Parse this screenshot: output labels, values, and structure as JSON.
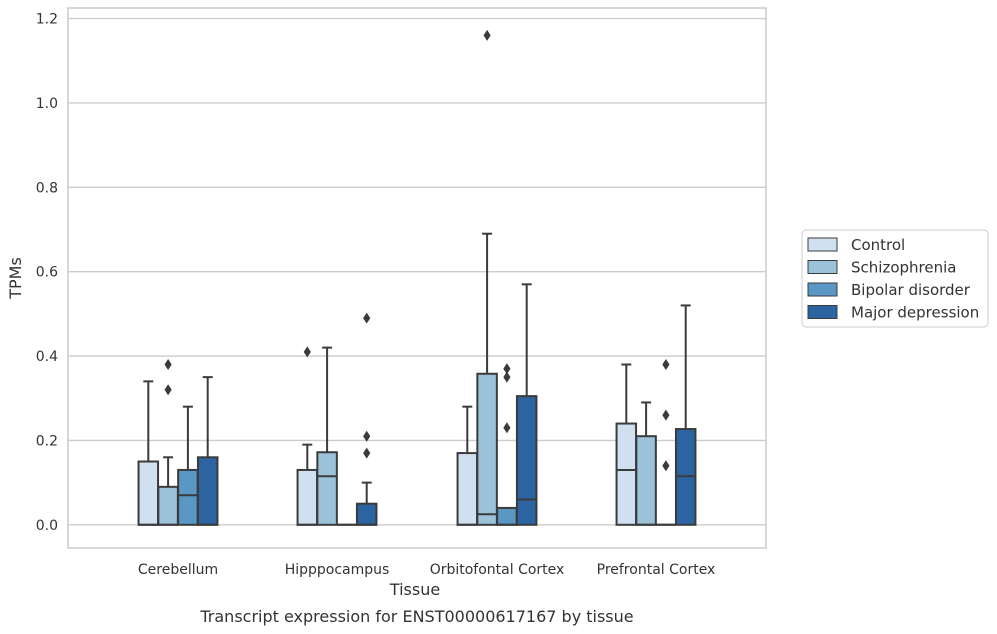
{
  "chart_data": {
    "type": "box",
    "caption": "Transcript expression for ENST00000617167 by tissue",
    "xlabel": "Tissue",
    "ylabel": "TPMs",
    "ylim": [
      -0.055,
      1.225
    ],
    "yticks": [
      0.0,
      0.2,
      0.4,
      0.6,
      0.8,
      1.0,
      1.2
    ],
    "ytick_labels": [
      "0.0",
      "0.2",
      "0.4",
      "0.6",
      "0.8",
      "1.0",
      "1.2"
    ],
    "grid": "horizontal",
    "legend_position": "right",
    "categories": [
      "Cerebellum",
      "Hipppocampus",
      "Orbitofontal Cortex",
      "Prefrontal Cortex"
    ],
    "series": [
      {
        "name": "Control",
        "color": "#d1e0f0",
        "boxes": [
          {
            "q1": 0.0,
            "median": 0.0,
            "q3": 0.15,
            "whisker_low": 0.0,
            "whisker_high": 0.34,
            "outliers": []
          },
          {
            "q1": 0.0,
            "median": 0.0,
            "q3": 0.13,
            "whisker_low": 0.0,
            "whisker_high": 0.19,
            "outliers": [
              0.41
            ]
          },
          {
            "q1": 0.0,
            "median": 0.0,
            "q3": 0.17,
            "whisker_low": 0.0,
            "whisker_high": 0.28,
            "outliers": []
          },
          {
            "q1": 0.0,
            "median": 0.13,
            "q3": 0.24,
            "whisker_low": 0.0,
            "whisker_high": 0.38,
            "outliers": []
          }
        ]
      },
      {
        "name": "Schizophrenia",
        "color": "#9cc2da",
        "boxes": [
          {
            "q1": 0.0,
            "median": 0.0,
            "q3": 0.09,
            "whisker_low": 0.0,
            "whisker_high": 0.16,
            "outliers": [
              0.32,
              0.38
            ]
          },
          {
            "q1": 0.0,
            "median": 0.115,
            "q3": 0.172,
            "whisker_low": 0.0,
            "whisker_high": 0.42,
            "outliers": []
          },
          {
            "q1": 0.0,
            "median": 0.025,
            "q3": 0.358,
            "whisker_low": 0.0,
            "whisker_high": 0.69,
            "outliers": [
              1.16
            ]
          },
          {
            "q1": 0.0,
            "median": 0.0,
            "q3": 0.21,
            "whisker_low": 0.0,
            "whisker_high": 0.29,
            "outliers": []
          }
        ]
      },
      {
        "name": "Bipolar disorder",
        "color": "#5b97c4",
        "boxes": [
          {
            "q1": 0.0,
            "median": 0.07,
            "q3": 0.13,
            "whisker_low": 0.0,
            "whisker_high": 0.28,
            "outliers": []
          },
          {
            "q1": 0.0,
            "median": 0.0,
            "q3": 0.0,
            "whisker_low": 0.0,
            "whisker_high": 0.0,
            "outliers": []
          },
          {
            "q1": 0.0,
            "median": 0.0,
            "q3": 0.04,
            "whisker_low": 0.0,
            "whisker_high": 0.04,
            "outliers": [
              0.23,
              0.35,
              0.37
            ]
          },
          {
            "q1": 0.0,
            "median": 0.0,
            "q3": 0.0,
            "whisker_low": 0.0,
            "whisker_high": 0.0,
            "outliers": [
              0.14,
              0.26,
              0.38
            ]
          }
        ]
      },
      {
        "name": "Major depression",
        "color": "#2c64a2",
        "boxes": [
          {
            "q1": 0.0,
            "median": 0.0,
            "q3": 0.16,
            "whisker_low": 0.0,
            "whisker_high": 0.35,
            "outliers": []
          },
          {
            "q1": 0.0,
            "median": 0.0,
            "q3": 0.05,
            "whisker_low": 0.0,
            "whisker_high": 0.1,
            "outliers": [
              0.17,
              0.21,
              0.49
            ]
          },
          {
            "q1": 0.0,
            "median": 0.06,
            "q3": 0.305,
            "whisker_low": 0.0,
            "whisker_high": 0.57,
            "outliers": []
          },
          {
            "q1": 0.0,
            "median": 0.115,
            "q3": 0.227,
            "whisker_low": 0.0,
            "whisker_high": 0.52,
            "outliers": []
          }
        ]
      }
    ]
  }
}
